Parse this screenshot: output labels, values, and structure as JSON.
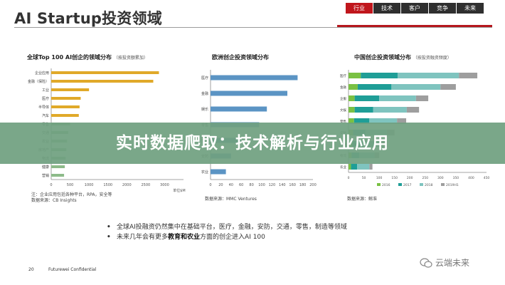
{
  "title": "AI Startup投资领域",
  "nav": [
    "行业",
    "技术",
    "客户",
    "竞争",
    "未来"
  ],
  "nav_active": 0,
  "charts": {
    "global": {
      "title": "全球Top 100 AI创企的领域分布",
      "title_note": "（按投资额累加）",
      "unit": "单位$M",
      "note1": "注：企业应用包括各种平台，RPA，安全等",
      "note2": "数据来源：CB Insights"
    },
    "europe": {
      "title": "欧洲创企投资领域分布",
      "note": "数据来源：MMC Ventures"
    },
    "china": {
      "title": "中国创企投资领域分布",
      "title_note": "（按投资融资频度）",
      "note": "数据来源：鲸准"
    }
  },
  "chart_data": [
    {
      "type": "bar",
      "orientation": "horizontal",
      "title": "全球Top 100 AI创企的领域分布",
      "xlabel": "单位$M",
      "categories": [
        "企业应用",
        "金融（保险）",
        "工业",
        "医疗",
        "半导体",
        "汽车",
        "零售",
        "交通",
        "农业",
        "房地产",
        "物流",
        "健康",
        "营销"
      ],
      "values": [
        2850,
        2700,
        1000,
        780,
        750,
        730,
        500,
        450,
        420,
        400,
        380,
        360,
        340
      ],
      "xlim": [
        0,
        3500
      ],
      "xticks": [
        0,
        500,
        1000,
        1500,
        2000,
        2500,
        3000
      ],
      "colors": {
        "highlight": "#e0a929",
        "other": "#8dbb8a"
      },
      "highlight_count": 6,
      "grid": false
    },
    {
      "type": "bar",
      "orientation": "horizontal",
      "title": "欧洲创企投资领域分布",
      "categories": [
        "医疗",
        "金融",
        "娱乐",
        "零售",
        "交通",
        "安防",
        "农业"
      ],
      "values": [
        170,
        150,
        110,
        95,
        60,
        40,
        30
      ],
      "xlim": [
        0,
        200
      ],
      "xticks": [
        0,
        20,
        40,
        60,
        80,
        100,
        120,
        140,
        160,
        180,
        200
      ],
      "colors": {
        "bar": "#5b94c4"
      },
      "grid": false
    },
    {
      "type": "bar",
      "orientation": "horizontal",
      "stacked": true,
      "title": "中国创企投资领域分布",
      "categories": [
        "医疗",
        "金融",
        "企服",
        "文娱",
        "零售",
        "安防",
        "交通",
        "物流",
        "农业"
      ],
      "xlim": [
        0,
        450
      ],
      "xticks": [
        0,
        50,
        100,
        150,
        200,
        250,
        300,
        350,
        400,
        450
      ],
      "series": [
        {
          "name": "2016",
          "color": "#7ac143",
          "values": [
            40,
            30,
            20,
            20,
            18,
            15,
            12,
            10,
            8
          ]
        },
        {
          "name": "2017",
          "color": "#1f9e97",
          "values": [
            120,
            110,
            80,
            60,
            50,
            40,
            35,
            25,
            20
          ]
        },
        {
          "name": "2018",
          "color": "#7fc4bf",
          "values": [
            200,
            160,
            120,
            110,
            90,
            70,
            60,
            50,
            40
          ]
        },
        {
          "name": "2019H1",
          "color": "#9e9e9e",
          "values": [
            60,
            50,
            40,
            40,
            30,
            25,
            20,
            15,
            10
          ]
        }
      ],
      "legend": "bottom",
      "grid": false
    }
  ],
  "bullets": [
    {
      "text_before": "全球AI投融资仍然集中在基础平台，医疗，金融，安防，交通，零售，制造等领域",
      "bold": "",
      "text_after": ""
    },
    {
      "text_before": "未来几年会有更多",
      "bold": "教育和农业",
      "text_after": "方面的创企进入AI 100"
    }
  ],
  "footer": {
    "page": "20",
    "confidential": "Futurewei Confidential"
  },
  "banner": {
    "text": "实时数据爬取：技术解析与行业应用"
  },
  "watermark": {
    "text": "云端未来"
  }
}
